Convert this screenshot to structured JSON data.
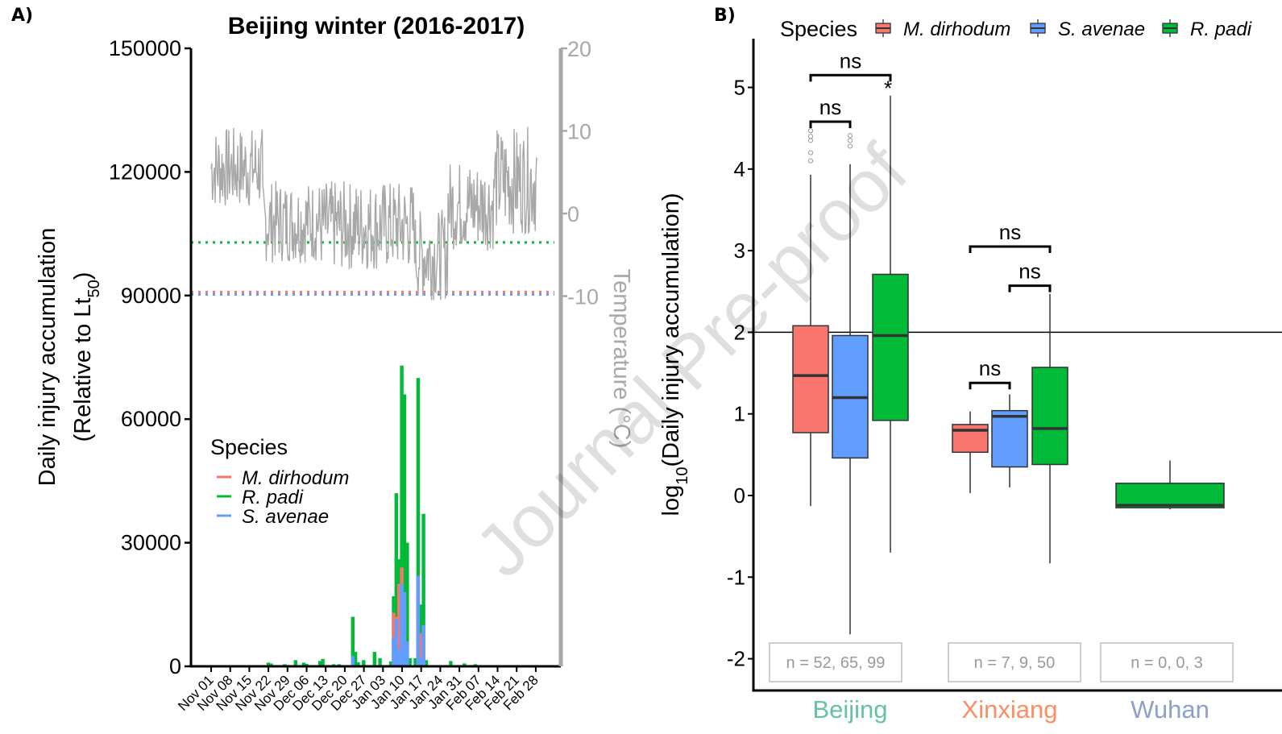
{
  "colors": {
    "m_dirhodum": "#f8766d",
    "s_avenae": "#619cff",
    "r_padi": "#00ba38",
    "temperature": "#a8a8a8",
    "beijing": "#66c2a5",
    "xinxiang": "#fc8d62",
    "wuhan": "#8da0cb"
  },
  "watermark": "Journal Pre-proof",
  "chart_data": [
    {
      "panel": "A)",
      "type": "bar",
      "title": "Beijing winter (2016-2017)",
      "ylabel": "Daily injury accumulation",
      "ylabel2_prefix": "(Relative to Lt",
      "ylabel2_sub": "50",
      "ylabel2_suffix": ")",
      "ylim": [
        0,
        150000
      ],
      "yticks": [
        0,
        30000,
        60000,
        90000,
        120000,
        150000
      ],
      "temp_axis_label": "Temperature (°C)",
      "temp_ylim": [
        -30,
        20
      ],
      "temp_ticks": [
        20,
        10,
        0,
        -10
      ],
      "x_ticks": [
        "Nov 01",
        "Nov 08",
        "Nov 15",
        "Nov 22",
        "Nov 29",
        "Dec 06",
        "Dec 13",
        "Dec 20",
        "Dec 27",
        "Jan 03",
        "Jan 10",
        "Jan 17",
        "Jan 24",
        "Jan 31",
        "Feb 07",
        "Feb 14",
        "Feb 21",
        "Feb 28"
      ],
      "legend": {
        "title": "Species",
        "items": [
          {
            "name": "M. dirhodum",
            "color": "#f8766d"
          },
          {
            "name": "R. padi",
            "color": "#00ba38"
          },
          {
            "name": "S. avenae",
            "color": "#619cff"
          }
        ]
      },
      "thresholds_c": [
        {
          "species": "R. padi",
          "value": -3.5,
          "color": "#00ba38"
        },
        {
          "species": "M. dirhodum",
          "value": -9.5,
          "color": "#f8766d"
        },
        {
          "species": "S. avenae",
          "value": -9.8,
          "color": "#619cff"
        }
      ],
      "temperature_series": {
        "name": "Temperature",
        "segments": [
          {
            "from_day": 0,
            "to_day": 19,
            "mean": 5.5,
            "amp": 5.0
          },
          {
            "from_day": 19,
            "to_day": 40,
            "mean": -1.0,
            "amp": 5.0
          },
          {
            "from_day": 40,
            "to_day": 75,
            "mean": -1.5,
            "amp": 5.5
          },
          {
            "from_day": 75,
            "to_day": 87,
            "mean": -5.0,
            "amp": 5.5
          },
          {
            "from_day": 87,
            "to_day": 104,
            "mean": 1.0,
            "amp": 5.5
          },
          {
            "from_day": 104,
            "to_day": 120,
            "mean": 4.0,
            "amp": 6.5
          }
        ]
      },
      "series": [
        {
          "name": "R. padi",
          "color": "#00ba38",
          "points": [
            {
              "day": 21,
              "value": 900
            },
            {
              "day": 22,
              "value": 700
            },
            {
              "day": 27,
              "value": 500
            },
            {
              "day": 31,
              "value": 1500
            },
            {
              "day": 34,
              "value": 900
            },
            {
              "day": 35,
              "value": 600
            },
            {
              "day": 40,
              "value": 1300
            },
            {
              "day": 41,
              "value": 1800
            },
            {
              "day": 45,
              "value": 500
            },
            {
              "day": 47,
              "value": 500
            },
            {
              "day": 52,
              "value": 12000
            },
            {
              "day": 53,
              "value": 3500
            },
            {
              "day": 54,
              "value": 1000
            },
            {
              "day": 56,
              "value": 1500
            },
            {
              "day": 60,
              "value": 3500
            },
            {
              "day": 62,
              "value": 2000
            },
            {
              "day": 66,
              "value": 1200
            },
            {
              "day": 67,
              "value": 17000
            },
            {
              "day": 68,
              "value": 42000
            },
            {
              "day": 69,
              "value": 26000
            },
            {
              "day": 70,
              "value": 73000
            },
            {
              "day": 71,
              "value": 66000
            },
            {
              "day": 72,
              "value": 30000
            },
            {
              "day": 73,
              "value": 2000
            },
            {
              "day": 75,
              "value": 2000
            },
            {
              "day": 76,
              "value": 70000
            },
            {
              "day": 77,
              "value": 15000
            },
            {
              "day": 78,
              "value": 37000
            },
            {
              "day": 79,
              "value": 1500
            },
            {
              "day": 88,
              "value": 1300
            },
            {
              "day": 93,
              "value": 700
            },
            {
              "day": 97,
              "value": 500
            }
          ]
        },
        {
          "name": "M. dirhodum",
          "color": "#f8766d",
          "points": [
            {
              "day": 67,
              "value": 13000
            },
            {
              "day": 68,
              "value": 12000
            },
            {
              "day": 69,
              "value": 20000
            },
            {
              "day": 70,
              "value": 24000
            },
            {
              "day": 71,
              "value": 14000
            },
            {
              "day": 76,
              "value": 22000
            },
            {
              "day": 77,
              "value": 8000
            },
            {
              "day": 78,
              "value": 10000
            }
          ]
        },
        {
          "name": "S. avenae",
          "color": "#619cff",
          "points": [
            {
              "day": 52,
              "value": 2500
            },
            {
              "day": 67,
              "value": 7000
            },
            {
              "day": 68,
              "value": 11500
            },
            {
              "day": 69,
              "value": 4000
            },
            {
              "day": 70,
              "value": 20000
            },
            {
              "day": 71,
              "value": 18000
            },
            {
              "day": 72,
              "value": 6000
            },
            {
              "day": 76,
              "value": 22000
            },
            {
              "day": 77,
              "value": 2000
            },
            {
              "day": 78,
              "value": 10000
            }
          ]
        }
      ]
    },
    {
      "panel": "B)",
      "type": "boxplot",
      "ylabel_prefix": "log",
      "ylabel_sub": "10",
      "ylabel_suffix": "(Daily injury accumulation)",
      "ylim": [
        -2.4,
        5.6
      ],
      "yticks": [
        5,
        4,
        3,
        2,
        1,
        0,
        -1,
        -2
      ],
      "hline": 2,
      "legend": {
        "title": "Species",
        "items": [
          {
            "name": "M. dirhodum",
            "color": "#f8766d"
          },
          {
            "name": "S. avenae",
            "color": "#619cff"
          },
          {
            "name": "R. padi",
            "color": "#00ba38"
          }
        ]
      },
      "groups": [
        {
          "name": "Beijing",
          "color": "#66c2a5",
          "n_label": "n = 52, 65, 99",
          "boxes": [
            {
              "species": "M. dirhodum",
              "color": "#f8766d",
              "min": -0.13,
              "q1": 0.77,
              "median": 1.47,
              "q3": 2.08,
              "max": 3.93,
              "outliers": [
                4.1,
                4.2,
                4.35,
                4.4,
                4.47
              ]
            },
            {
              "species": "S. avenae",
              "color": "#619cff",
              "min": -1.7,
              "q1": 0.46,
              "median": 1.2,
              "q3": 1.96,
              "max": 4.06,
              "outliers": [
                4.28,
                4.35,
                4.41
              ]
            },
            {
              "species": "R. padi",
              "color": "#00ba38",
              "min": -0.7,
              "q1": 0.92,
              "median": 1.96,
              "q3": 2.71,
              "max": 4.9,
              "outliers": []
            }
          ]
        },
        {
          "name": "Xinxiang",
          "color": "#fc8d62",
          "n_label": "n = 7, 9, 50",
          "boxes": [
            {
              "species": "M. dirhodum",
              "color": "#f8766d",
              "min": 0.03,
              "q1": 0.53,
              "median": 0.8,
              "q3": 0.87,
              "max": 1.03,
              "outliers": []
            },
            {
              "species": "S. avenae",
              "color": "#619cff",
              "min": 0.1,
              "q1": 0.35,
              "median": 0.97,
              "q3": 1.04,
              "max": 1.24,
              "outliers": []
            },
            {
              "species": "R. padi",
              "color": "#00ba38",
              "min": -0.83,
              "q1": 0.38,
              "median": 0.82,
              "q3": 1.57,
              "max": 2.47,
              "outliers": []
            }
          ]
        },
        {
          "name": "Wuhan",
          "color": "#8da0cb",
          "n_label": "n = 0, 0, 3",
          "boxes": [
            {
              "species": "R. padi",
              "color": "#00ba38",
              "min": -0.17,
              "q1": -0.15,
              "median": -0.12,
              "q3": 0.15,
              "max": 0.43,
              "outliers": []
            }
          ]
        }
      ],
      "comparisons": [
        {
          "group": "Beijing",
          "from": "M. dirhodum",
          "to": "S. avenae",
          "label": "ns",
          "y": 4.58
        },
        {
          "group": "Beijing",
          "from": "M. dirhodum",
          "to": "R. padi",
          "label": "ns",
          "y": 5.15
        },
        {
          "group": "Xinxiang",
          "from": "M. dirhodum",
          "to": "S. avenae",
          "label": "ns",
          "y": 1.38
        },
        {
          "group": "Xinxiang",
          "from": "M. dirhodum",
          "to": "R. padi",
          "label": "ns",
          "y": 3.05
        },
        {
          "group": "Xinxiang",
          "from": "S. avenae",
          "to": "R. padi",
          "label": "ns",
          "y": 2.57
        }
      ],
      "star": {
        "group": "Beijing",
        "species": "R. padi",
        "label": "*",
        "y": 5.0
      }
    }
  ]
}
